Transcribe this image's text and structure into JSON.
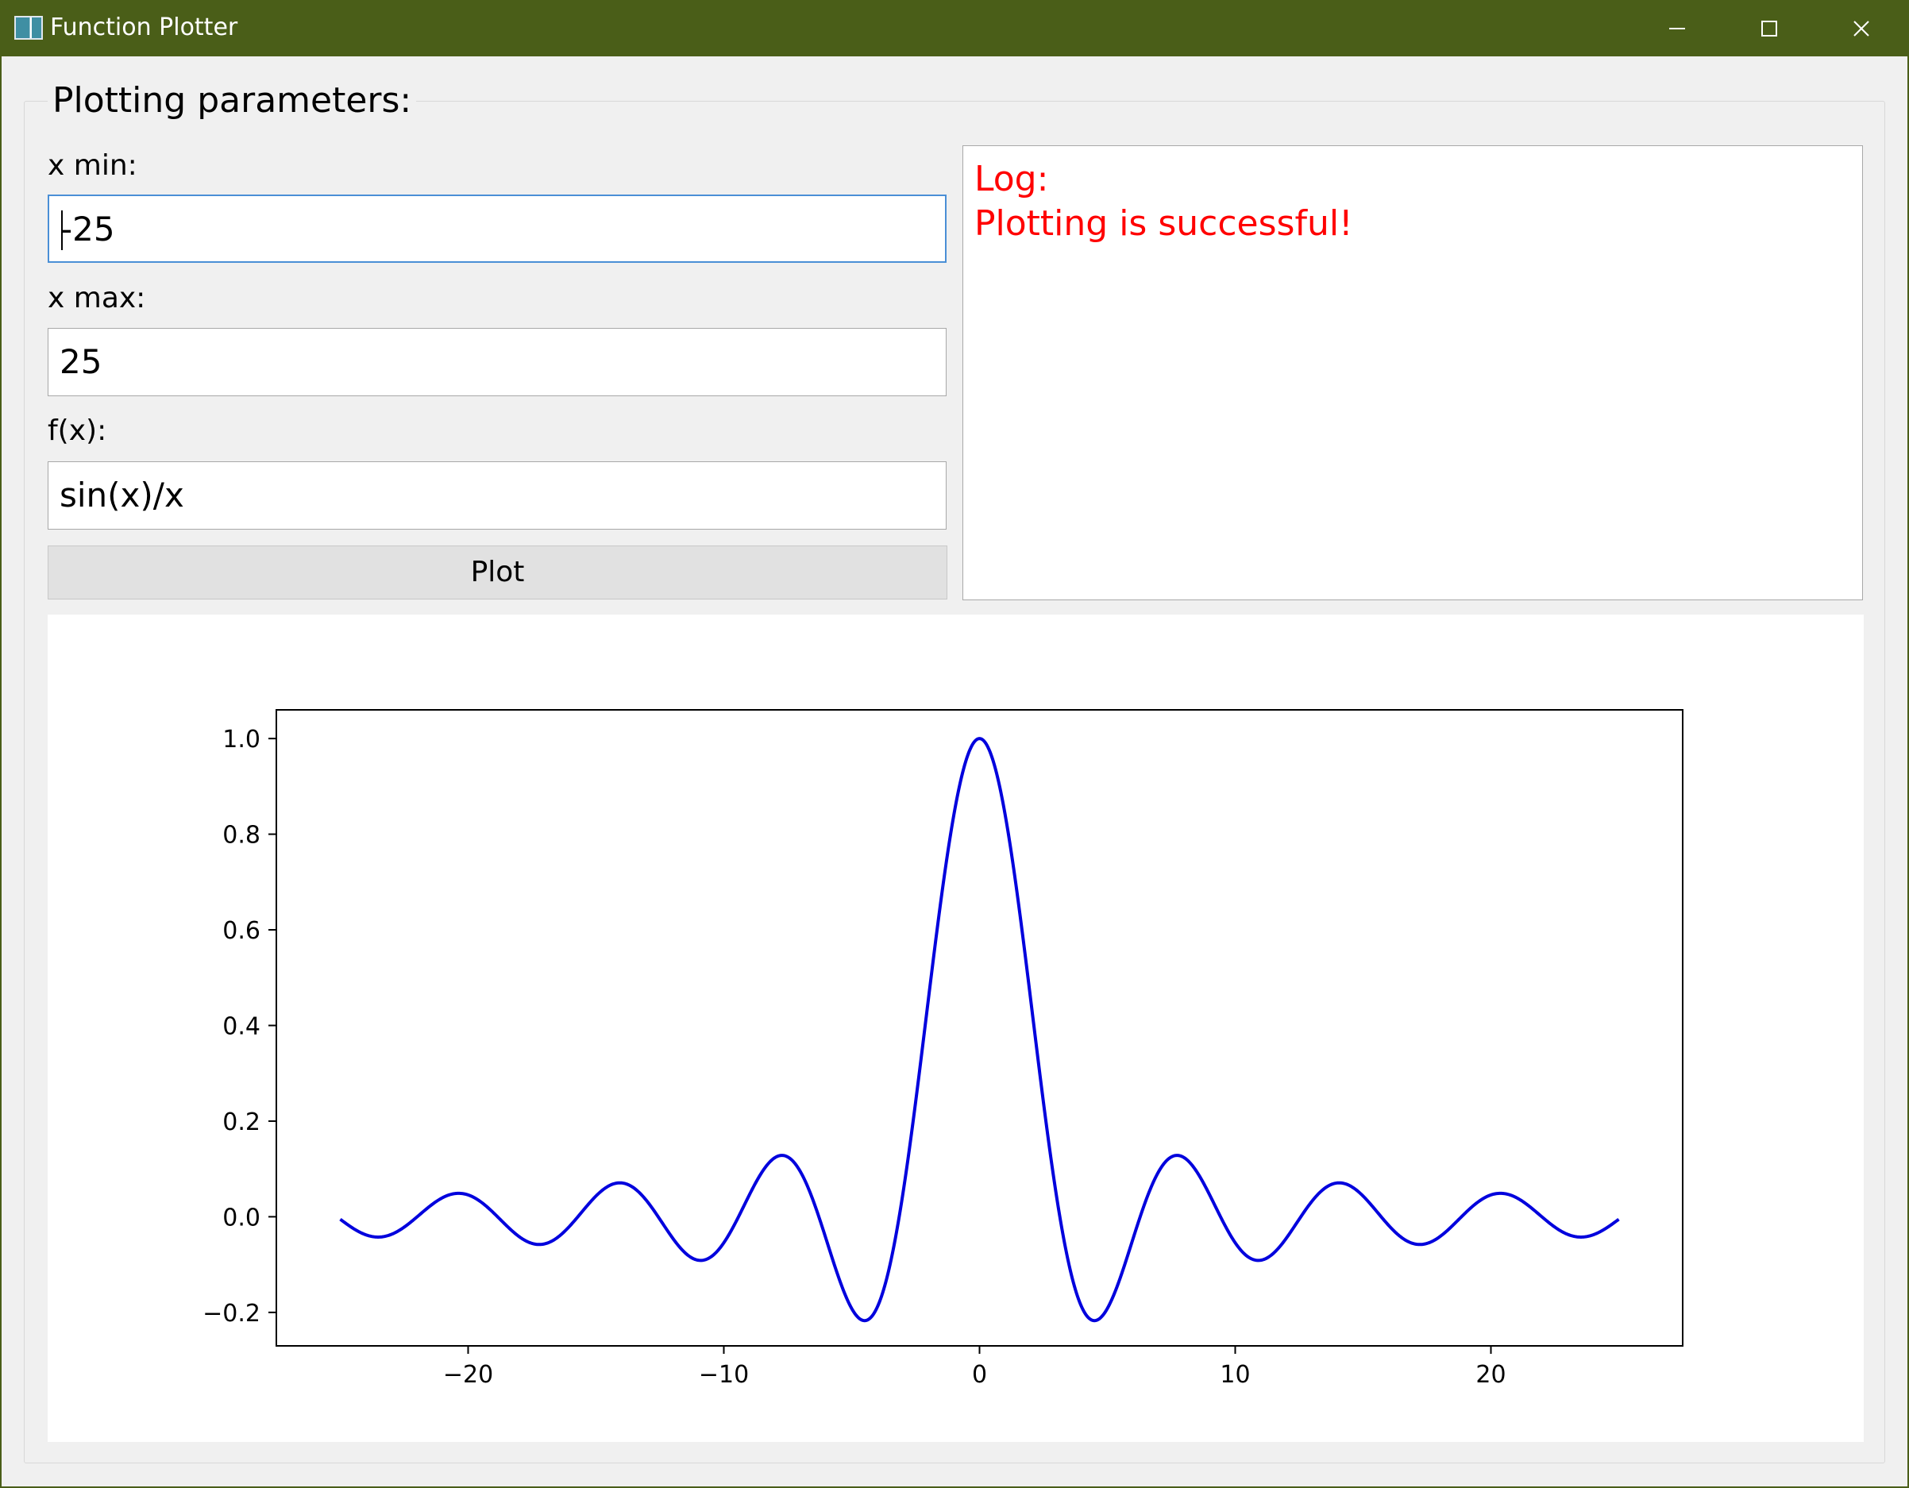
{
  "window": {
    "title": "Function Plotter",
    "controls": [
      "minimize-icon",
      "maximize-icon",
      "close-icon"
    ]
  },
  "params": {
    "group_title": "Plotting parameters:",
    "xmin_label": "x min:",
    "xmin_value": "-25",
    "xmax_label": "x max:",
    "xmax_value": "25",
    "fx_label": "f(x):",
    "fx_value": "sin(x)/x",
    "plot_button": "Plot"
  },
  "log": {
    "title": "Log:",
    "message": "Plotting is successful!",
    "color": "#ff0000"
  },
  "chart_data": {
    "type": "line",
    "function": "sin(x)/x",
    "x_range": [
      -25,
      25
    ],
    "xlim": [
      -27.5,
      27.5
    ],
    "ylim": [
      -0.27,
      1.06
    ],
    "xticks": [
      -20,
      -10,
      0,
      10,
      20
    ],
    "xtick_labels": [
      "−20",
      "−10",
      "0",
      "10",
      "20"
    ],
    "yticks": [
      -0.2,
      0.0,
      0.2,
      0.4,
      0.6,
      0.8,
      1.0
    ],
    "ytick_labels": [
      "−0.2",
      "0.0",
      "0.2",
      "0.4",
      "0.6",
      "0.8",
      "1.0"
    ],
    "series": [
      {
        "color": "#0000dd"
      }
    ],
    "title": "",
    "xlabel": "",
    "ylabel": "",
    "grid": false,
    "legend": "none"
  }
}
